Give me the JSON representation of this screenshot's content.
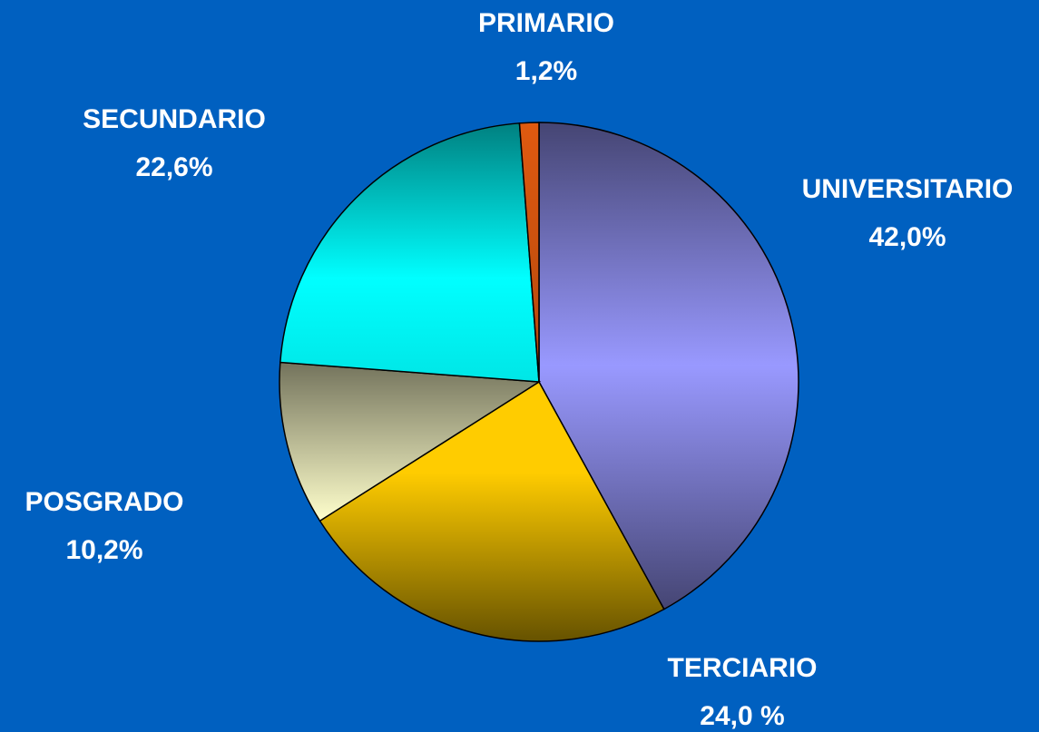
{
  "chart_data": {
    "type": "pie",
    "categories": [
      "UNIVERSITARIO",
      "TERCIARIO",
      "POSGRADO",
      "SECUNDARIO",
      "PRIMARIO"
    ],
    "values": [
      42.0,
      24.0,
      10.2,
      22.6,
      1.2
    ],
    "value_labels": [
      "42,0%",
      "24,0 %",
      "10,2%",
      "22,6%",
      "1,2%"
    ],
    "colors": [
      "#9999ff",
      "#ffcc00",
      "#ffffcc",
      "#00ffff",
      "#e05a10"
    ]
  }
}
